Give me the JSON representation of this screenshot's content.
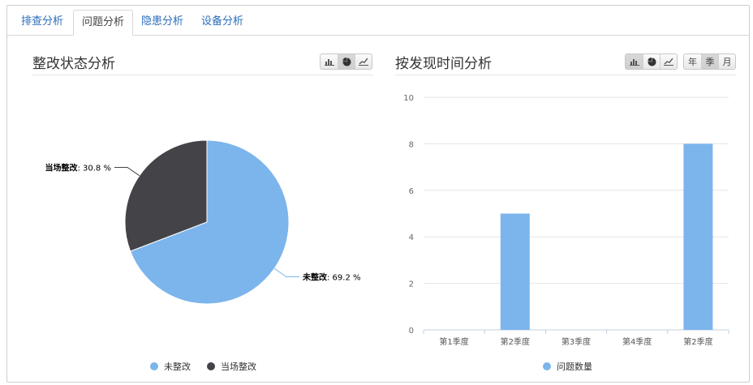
{
  "tabs": [
    {
      "label": "排查分析",
      "active": false
    },
    {
      "label": "问题分析",
      "active": true
    },
    {
      "label": "隐患分析",
      "active": false
    },
    {
      "label": "设备分析",
      "active": false
    }
  ],
  "left_panel": {
    "title": "整改状态分析",
    "toolbar": [
      {
        "icon": "bar-chart-icon",
        "active": false
      },
      {
        "icon": "pie-chart-icon",
        "active": true
      },
      {
        "icon": "line-chart-icon",
        "active": false
      }
    ]
  },
  "right_panel": {
    "title": "按发现时间分析",
    "toolbar": [
      {
        "icon": "bar-chart-icon",
        "active": true
      },
      {
        "icon": "pie-chart-icon",
        "active": false
      },
      {
        "icon": "line-chart-icon",
        "active": false
      }
    ],
    "period_buttons": [
      {
        "label": "年",
        "active": false
      },
      {
        "label": "季",
        "active": true
      },
      {
        "label": "月",
        "active": false
      }
    ]
  },
  "chart_data": [
    {
      "type": "pie",
      "title": "",
      "slices": [
        {
          "name": "未整改",
          "value": 69.2,
          "label_value": "69.2 %",
          "color": "#7cb5ec"
        },
        {
          "name": "当场整改",
          "value": 30.8,
          "label_value": "30.8 %",
          "color": "#434348"
        }
      ],
      "legend": [
        "未整改",
        "当场整改"
      ],
      "legend_position": "bottom"
    },
    {
      "type": "bar",
      "title": "",
      "categories": [
        "第1季度",
        "第2季度",
        "第3季度",
        "第4季度",
        "第2季度"
      ],
      "series": [
        {
          "name": "问题数量",
          "values": [
            0,
            5,
            0,
            0,
            8
          ],
          "color": "#7cb5ec"
        }
      ],
      "ylim": [
        0,
        10
      ],
      "yticks": [
        0,
        2,
        4,
        6,
        8,
        10
      ],
      "grid": true,
      "legend_position": "bottom"
    }
  ]
}
